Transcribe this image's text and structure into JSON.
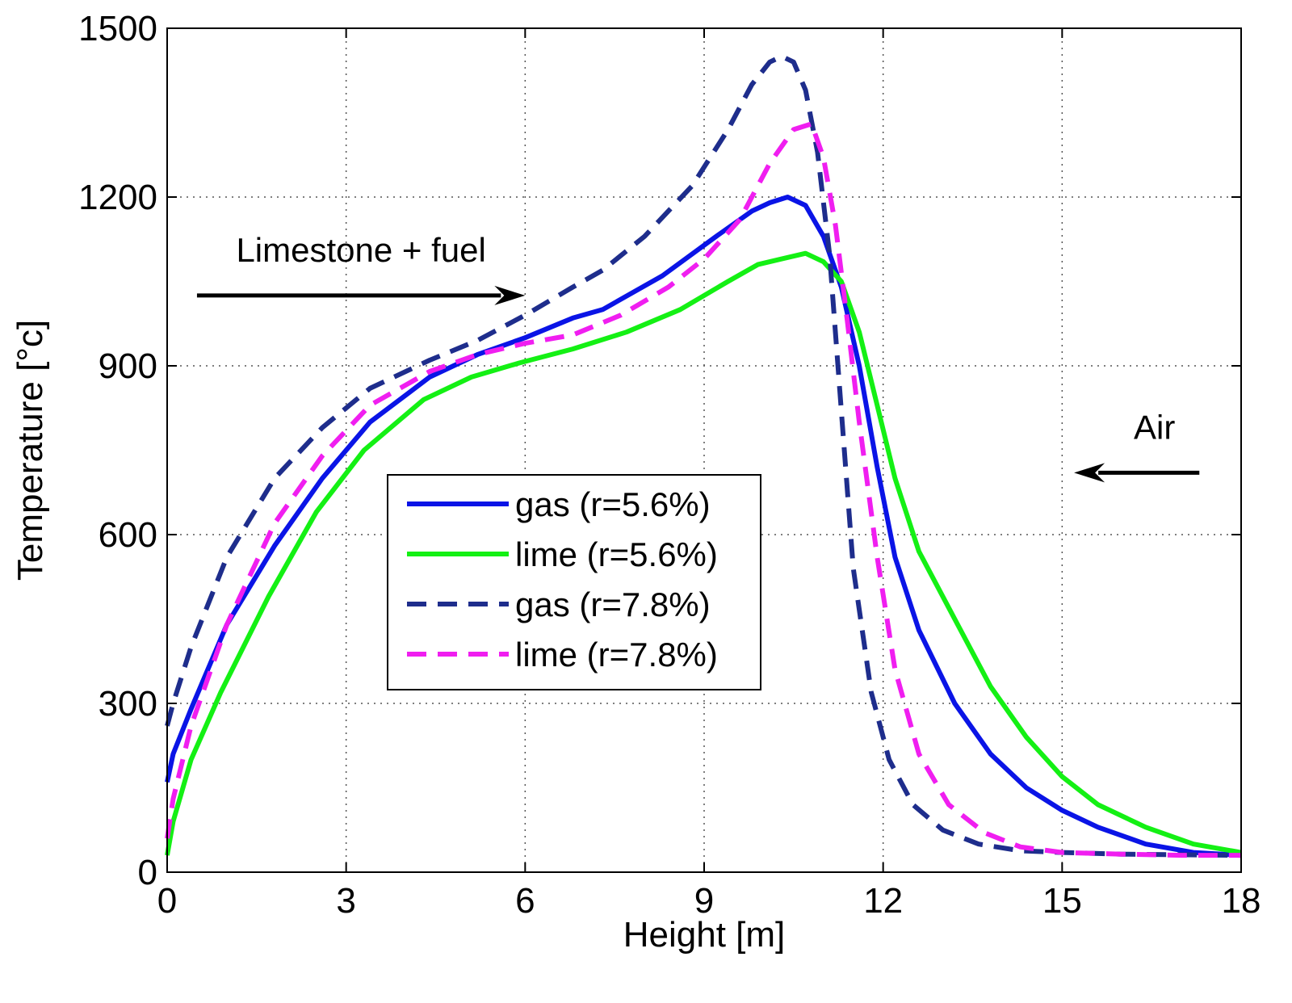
{
  "chart_data": {
    "type": "line",
    "title": "",
    "xlabel": "Height [m]",
    "ylabel": "Temperature [°c]",
    "xlim": [
      0,
      18
    ],
    "ylim": [
      0,
      1500
    ],
    "xticks": [
      0,
      3,
      6,
      9,
      12,
      15,
      18
    ],
    "yticks": [
      0,
      300,
      600,
      900,
      1200,
      1500
    ],
    "grid": true,
    "legend_position": "center-left",
    "annotations": [
      {
        "text": "Limestone + fuel",
        "arrow": "right",
        "x_from": 0.5,
        "x_to": 6.0,
        "y": 1025
      },
      {
        "text": "Air",
        "arrow": "left",
        "x_from": 17.3,
        "x_to": 15.2,
        "y": 710
      }
    ],
    "series": [
      {
        "name": "gas (r=5.6%)",
        "color": "#0a14e6",
        "style": "solid",
        "x": [
          0,
          0.1,
          0.4,
          1.0,
          1.8,
          2.6,
          3.4,
          4.4,
          5.2,
          6.0,
          6.8,
          7.3,
          8.3,
          9.2,
          9.8,
          10.1,
          10.4,
          10.7,
          11.0,
          11.3,
          11.6,
          11.9,
          12.2,
          12.6,
          13.2,
          13.8,
          14.4,
          15.0,
          15.6,
          16.4,
          17.2,
          18.0
        ],
        "y": [
          160,
          210,
          290,
          440,
          580,
          700,
          800,
          880,
          920,
          950,
          985,
          1000,
          1060,
          1130,
          1175,
          1190,
          1200,
          1185,
          1130,
          1040,
          900,
          720,
          560,
          430,
          300,
          210,
          150,
          110,
          80,
          50,
          35,
          30
        ]
      },
      {
        "name": "lime (r=5.6%)",
        "color": "#14f014",
        "style": "solid",
        "x": [
          0,
          0.1,
          0.4,
          0.9,
          1.7,
          2.5,
          3.3,
          4.3,
          5.1,
          5.9,
          6.8,
          7.7,
          8.6,
          9.4,
          9.9,
          10.3,
          10.7,
          11.0,
          11.3,
          11.6,
          11.9,
          12.2,
          12.6,
          13.2,
          13.8,
          14.4,
          15.0,
          15.6,
          16.4,
          17.2,
          18.0
        ],
        "y": [
          30,
          90,
          200,
          320,
          490,
          640,
          750,
          840,
          880,
          905,
          930,
          960,
          1000,
          1050,
          1080,
          1090,
          1100,
          1085,
          1050,
          960,
          830,
          700,
          570,
          450,
          330,
          240,
          170,
          120,
          80,
          50,
          35
        ]
      },
      {
        "name": "gas (r=7.8%)",
        "color": "#1e2d8c",
        "style": "dashed",
        "x": [
          0,
          0.1,
          0.4,
          1.0,
          1.8,
          2.6,
          3.4,
          4.4,
          5.2,
          6.0,
          6.8,
          7.3,
          8.0,
          8.8,
          9.4,
          9.8,
          10.1,
          10.3,
          10.5,
          10.7,
          10.9,
          11.1,
          11.3,
          11.5,
          11.8,
          12.1,
          12.5,
          13.0,
          13.6,
          14.3,
          15.0,
          16.0,
          17.0,
          18.0
        ],
        "y": [
          260,
          300,
          400,
          560,
          700,
          790,
          860,
          910,
          945,
          990,
          1040,
          1070,
          1130,
          1220,
          1320,
          1400,
          1440,
          1450,
          1440,
          1390,
          1280,
          1100,
          820,
          540,
          320,
          200,
          120,
          75,
          50,
          38,
          35,
          32,
          31,
          30
        ]
      },
      {
        "name": "lime (r=7.8%)",
        "color": "#f01ef0",
        "style": "dashed",
        "x": [
          0,
          0.1,
          0.4,
          1.0,
          1.8,
          2.6,
          3.4,
          4.4,
          5.2,
          6.0,
          6.8,
          7.6,
          8.4,
          9.0,
          9.6,
          10.1,
          10.5,
          10.8,
          11.0,
          11.2,
          11.4,
          11.6,
          11.9,
          12.2,
          12.6,
          13.1,
          13.7,
          14.3,
          15.0,
          16.0,
          17.0,
          18.0
        ],
        "y": [
          60,
          130,
          260,
          440,
          620,
          740,
          830,
          890,
          920,
          940,
          955,
          990,
          1040,
          1090,
          1160,
          1260,
          1320,
          1330,
          1270,
          1150,
          980,
          800,
          560,
          360,
          210,
          120,
          70,
          45,
          35,
          32,
          30,
          30
        ]
      }
    ]
  }
}
